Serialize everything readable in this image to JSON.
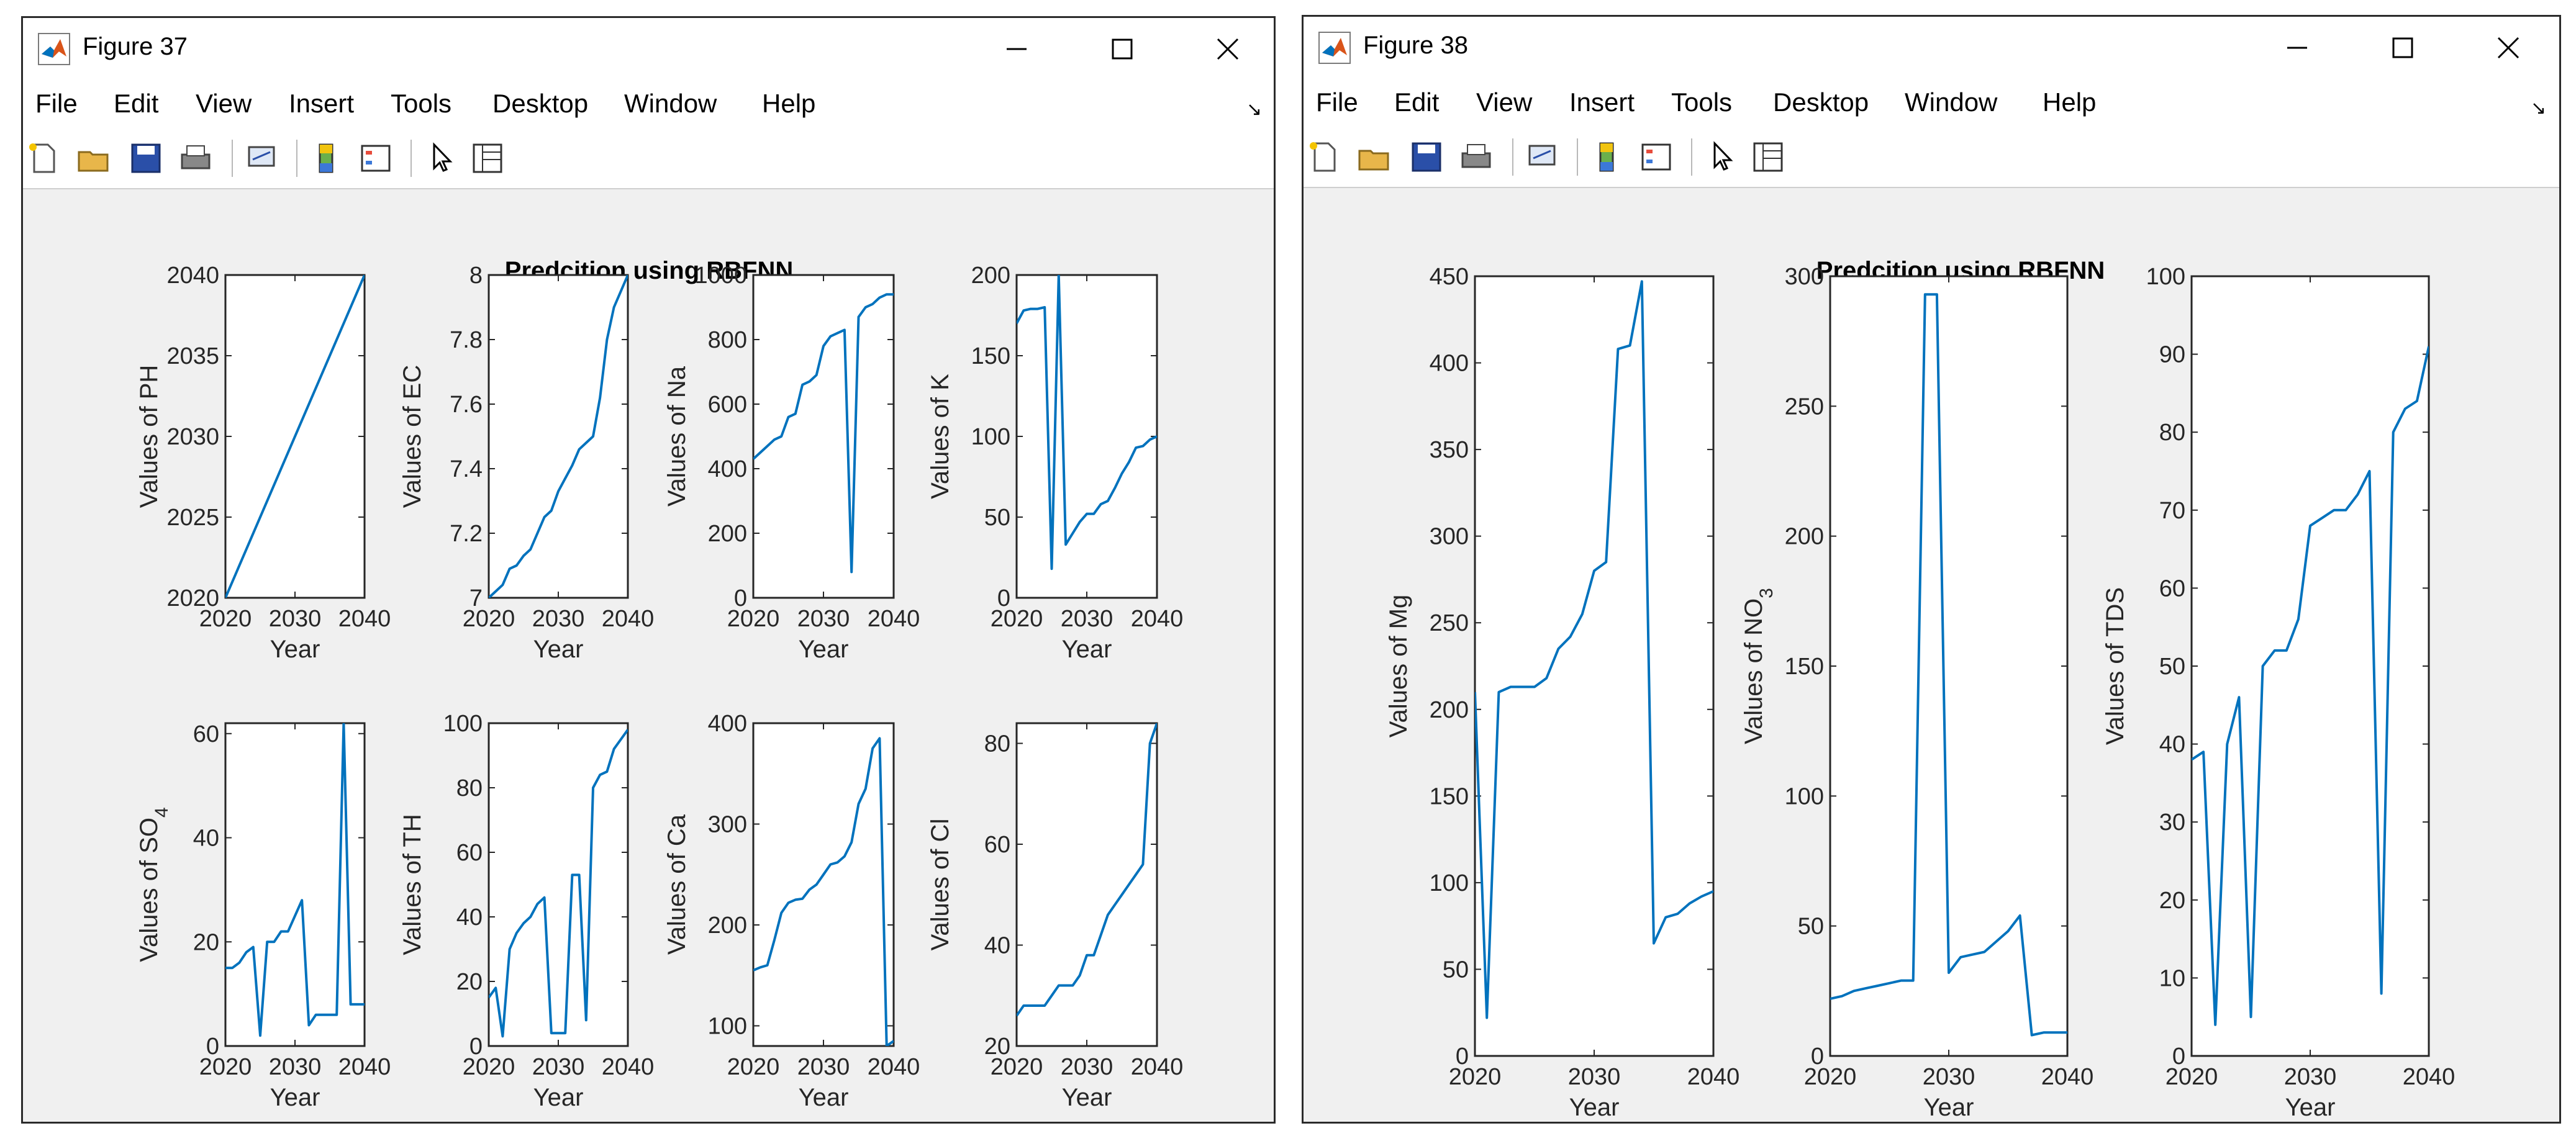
{
  "windows": [
    {
      "title": "Figure 37",
      "menu": [
        "File",
        "Edit",
        "View",
        "Insert",
        "Tools",
        "Desktop",
        "Window",
        "Help"
      ],
      "suptitle": "Predcition  using RBFNN"
    },
    {
      "title": "Figure 38",
      "menu": [
        "File",
        "Edit",
        "View",
        "Insert",
        "Tools",
        "Desktop",
        "Window",
        "Help"
      ],
      "suptitle": "Predcition  using RBFNN"
    }
  ],
  "toolbar_icons": [
    "new-figure-icon",
    "open-file-icon",
    "save-icon",
    "print-icon",
    "link-plot-icon",
    "colorbar-icon",
    "legend-icon",
    "edit-plot-arrow-icon",
    "property-inspector-icon"
  ],
  "colors": {
    "line": "#0072bd",
    "window_bg": "#f0f0f0",
    "axes_bg": "#ffffff"
  },
  "chart_data": [
    {
      "type": "line",
      "window": 0,
      "xlabel": "Year",
      "ylabel": "Values of PH",
      "xlim": [
        2020,
        2040
      ],
      "ylim": [
        2020,
        2040
      ],
      "xticks": [
        2020,
        2030,
        2040
      ],
      "yticks": [
        2020,
        2025,
        2030,
        2035,
        2040
      ],
      "series": [
        {
          "x": [
            2020,
            2040
          ],
          "y": [
            2020,
            2040
          ]
        }
      ]
    },
    {
      "type": "line",
      "window": 0,
      "xlabel": "Year",
      "ylabel": "Values of EC",
      "xlim": [
        2020,
        2040
      ],
      "ylim": [
        7,
        8
      ],
      "xticks": [
        2020,
        2030,
        2040
      ],
      "yticks": [
        7,
        7.2,
        7.4,
        7.6,
        7.8,
        8
      ],
      "series": [
        {
          "x": [
            2020,
            2021,
            2022,
            2023,
            2024,
            2025,
            2026,
            2027,
            2028,
            2029,
            2030,
            2031,
            2032,
            2033,
            2034,
            2035,
            2036,
            2037,
            2038,
            2039,
            2040
          ],
          "y": [
            7.0,
            7.02,
            7.04,
            7.09,
            7.1,
            7.13,
            7.15,
            7.2,
            7.25,
            7.27,
            7.33,
            7.37,
            7.41,
            7.46,
            7.48,
            7.5,
            7.62,
            7.8,
            7.9,
            7.95,
            8.0
          ]
        }
      ]
    },
    {
      "type": "line",
      "window": 0,
      "xlabel": "Year",
      "ylabel": "Values of Na",
      "xlim": [
        2020,
        2040
      ],
      "ylim": [
        0,
        1000
      ],
      "xticks": [
        2020,
        2030,
        2040
      ],
      "yticks": [
        0,
        200,
        400,
        600,
        800,
        1000
      ],
      "series": [
        {
          "x": [
            2020,
            2021,
            2022,
            2023,
            2024,
            2025,
            2026,
            2027,
            2028,
            2029,
            2030,
            2031,
            2032,
            2033,
            2034,
            2035,
            2036,
            2037,
            2038,
            2039,
            2040
          ],
          "y": [
            430,
            450,
            470,
            490,
            500,
            560,
            570,
            660,
            670,
            690,
            780,
            810,
            820,
            830,
            80,
            870,
            900,
            910,
            930,
            940,
            940
          ]
        }
      ]
    },
    {
      "type": "line",
      "window": 0,
      "xlabel": "Year",
      "ylabel": "Values of K",
      "xlim": [
        2020,
        2040
      ],
      "ylim": [
        0,
        200
      ],
      "xticks": [
        2020,
        2030,
        2040
      ],
      "yticks": [
        0,
        50,
        100,
        150,
        200
      ],
      "series": [
        {
          "x": [
            2020,
            2021,
            2022,
            2023,
            2024,
            2025,
            2026,
            2027,
            2028,
            2029,
            2030,
            2031,
            2032,
            2033,
            2034,
            2035,
            2036,
            2037,
            2038,
            2039,
            2040
          ],
          "y": [
            170,
            178,
            179,
            179,
            180,
            18,
            200,
            33,
            40,
            47,
            52,
            52,
            58,
            60,
            68,
            77,
            84,
            93,
            94,
            98,
            100
          ]
        }
      ]
    },
    {
      "type": "line",
      "window": 0,
      "xlabel": "Year",
      "ylabel": "Values of SO4",
      "xlim": [
        2020,
        2040
      ],
      "ylim": [
        0,
        62
      ],
      "xticks": [
        2020,
        2030,
        2040
      ],
      "yticks": [
        0,
        20,
        40,
        60
      ],
      "series": [
        {
          "x": [
            2020,
            2021,
            2022,
            2023,
            2024,
            2025,
            2026,
            2027,
            2028,
            2029,
            2030,
            2031,
            2032,
            2033,
            2034,
            2035,
            2036,
            2037,
            2038,
            2039,
            2040
          ],
          "y": [
            15,
            15,
            16,
            18,
            19,
            2,
            20,
            20,
            22,
            22,
            25,
            28,
            4,
            6,
            6,
            6,
            6,
            62,
            8,
            8,
            8
          ]
        }
      ]
    },
    {
      "type": "line",
      "window": 0,
      "xlabel": "Year",
      "ylabel": "Values of TH",
      "xlim": [
        2020,
        2040
      ],
      "ylim": [
        0,
        100
      ],
      "xticks": [
        2020,
        2030,
        2040
      ],
      "yticks": [
        0,
        20,
        40,
        60,
        80,
        100
      ],
      "series": [
        {
          "x": [
            2020,
            2021,
            2022,
            2023,
            2024,
            2025,
            2026,
            2027,
            2028,
            2029,
            2030,
            2031,
            2032,
            2033,
            2034,
            2035,
            2036,
            2037,
            2038,
            2039,
            2040
          ],
          "y": [
            15,
            18,
            3,
            30,
            35,
            38,
            40,
            44,
            46,
            4,
            4,
            4,
            53,
            53,
            8,
            80,
            84,
            85,
            92,
            95,
            98
          ]
        }
      ]
    },
    {
      "type": "line",
      "window": 0,
      "xlabel": "Year",
      "ylabel": "Values of Ca",
      "xlim": [
        2020,
        2040
      ],
      "ylim": [
        80,
        400
      ],
      "xticks": [
        2020,
        2030,
        2040
      ],
      "yticks": [
        100,
        200,
        300,
        400
      ],
      "series": [
        {
          "x": [
            2020,
            2021,
            2022,
            2023,
            2024,
            2025,
            2026,
            2027,
            2028,
            2029,
            2030,
            2031,
            2032,
            2033,
            2034,
            2035,
            2036,
            2037,
            2038,
            2039,
            2040
          ],
          "y": [
            155,
            158,
            160,
            185,
            212,
            222,
            225,
            226,
            235,
            240,
            250,
            260,
            262,
            268,
            282,
            320,
            335,
            375,
            385,
            80,
            85
          ]
        }
      ]
    },
    {
      "type": "line",
      "window": 0,
      "xlabel": "Year",
      "ylabel": "Values of Cl",
      "xlim": [
        2020,
        2040
      ],
      "ylim": [
        20,
        84
      ],
      "xticks": [
        2020,
        2030,
        2040
      ],
      "yticks": [
        20,
        40,
        60,
        80
      ],
      "series": [
        {
          "x": [
            2020,
            2021,
            2022,
            2023,
            2024,
            2025,
            2026,
            2027,
            2028,
            2029,
            2030,
            2031,
            2032,
            2033,
            2034,
            2035,
            2036,
            2037,
            2038,
            2039,
            2040
          ],
          "y": [
            26,
            28,
            28,
            28,
            28,
            30,
            32,
            32,
            32,
            34,
            38,
            38,
            42,
            46,
            48,
            50,
            52,
            54,
            56,
            80,
            84
          ]
        }
      ]
    },
    {
      "type": "line",
      "window": 1,
      "xlabel": "Year",
      "ylabel": "Values of Mg",
      "xlim": [
        2020,
        2040
      ],
      "ylim": [
        0,
        450
      ],
      "xticks": [
        2020,
        2030,
        2040
      ],
      "yticks": [
        0,
        50,
        100,
        150,
        200,
        250,
        300,
        350,
        400,
        450
      ],
      "series": [
        {
          "x": [
            2020,
            2021,
            2022,
            2023,
            2024,
            2025,
            2026,
            2027,
            2028,
            2029,
            2030,
            2031,
            2032,
            2033,
            2034,
            2035,
            2036,
            2037,
            2038,
            2039,
            2040
          ],
          "y": [
            210,
            22,
            210,
            213,
            213,
            213,
            218,
            235,
            242,
            255,
            280,
            285,
            408,
            410,
            447,
            65,
            80,
            82,
            88,
            92,
            95
          ]
        }
      ]
    },
    {
      "type": "line",
      "window": 1,
      "xlabel": "Year",
      "ylabel": "Values of NO3",
      "xlim": [
        2020,
        2040
      ],
      "ylim": [
        0,
        300
      ],
      "xticks": [
        2020,
        2030,
        2040
      ],
      "yticks": [
        0,
        50,
        100,
        150,
        200,
        250,
        300
      ],
      "series": [
        {
          "x": [
            2020,
            2021,
            2022,
            2023,
            2024,
            2025,
            2026,
            2027,
            2028,
            2029,
            2030,
            2031,
            2032,
            2033,
            2034,
            2035,
            2036,
            2037,
            2038,
            2039,
            2040
          ],
          "y": [
            22,
            23,
            25,
            26,
            27,
            28,
            29,
            29,
            293,
            293,
            32,
            38,
            39,
            40,
            44,
            48,
            54,
            8,
            9,
            9,
            9
          ]
        }
      ]
    },
    {
      "type": "line",
      "window": 1,
      "xlabel": "Year",
      "ylabel": "Values of TDS",
      "xlim": [
        2020,
        2040
      ],
      "ylim": [
        0,
        100
      ],
      "xticks": [
        2020,
        2030,
        2040
      ],
      "yticks": [
        0,
        10,
        20,
        30,
        40,
        50,
        60,
        70,
        80,
        90,
        100
      ],
      "series": [
        {
          "x": [
            2020,
            2021,
            2022,
            2023,
            2024,
            2025,
            2026,
            2027,
            2028,
            2029,
            2030,
            2031,
            2032,
            2033,
            2034,
            2035,
            2036,
            2037,
            2038,
            2039,
            2040
          ],
          "y": [
            38,
            39,
            4,
            40,
            46,
            5,
            50,
            52,
            52,
            56,
            68,
            69,
            70,
            70,
            72,
            75,
            8,
            80,
            83,
            84,
            91
          ]
        }
      ]
    }
  ]
}
